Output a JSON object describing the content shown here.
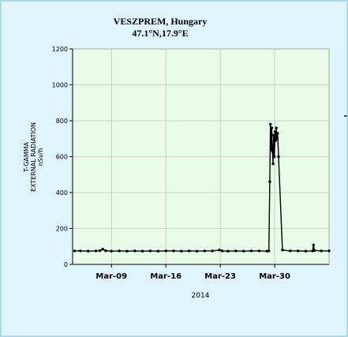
{
  "colors": {
    "panel_background": "#dff5fb",
    "panel_border": "#a6dcec",
    "plot_background": "#e8fbe8",
    "grid": "#c4c4c4",
    "series": "#000000"
  },
  "chart_data": {
    "type": "line",
    "title": "VESZPREM, Hungary",
    "subtitle": "47.1°N,17.9°E",
    "xlabel": "2014",
    "ylabel": "T-GAMMA",
    "ylabel2": "EXTERNAL RADIATION",
    "yunit": "nSv/h",
    "ylim": [
      0,
      1200
    ],
    "y_ticks": [
      "0",
      "200",
      "400",
      "600",
      "800",
      "1000",
      "1200"
    ],
    "xlim": [
      "2014-03-04T00:00",
      "2014-04-06T00:00"
    ],
    "x_ticks": [
      {
        "date": "2014-03-09",
        "label": "Mar-09"
      },
      {
        "date": "2014-03-16",
        "label": "Mar-16"
      },
      {
        "date": "2014-03-23",
        "label": "Mar-23"
      },
      {
        "date": "2014-03-30",
        "label": "Mar-30"
      }
    ],
    "grid": true,
    "legend": "none",
    "series": [
      {
        "points": [
          [
            "2014-03-04T06:00",
            75
          ],
          [
            "2014-03-05T00:00",
            75
          ],
          [
            "2014-03-06T00:00",
            74
          ],
          [
            "2014-03-07T00:00",
            75
          ],
          [
            "2014-03-07T12:00",
            76
          ],
          [
            "2014-03-07T21:00",
            85
          ],
          [
            "2014-03-08T06:00",
            76
          ],
          [
            "2014-03-09T00:00",
            74
          ],
          [
            "2014-03-10T00:00",
            75
          ],
          [
            "2014-03-11T00:00",
            74
          ],
          [
            "2014-03-12T00:00",
            75
          ],
          [
            "2014-03-13T00:00",
            74
          ],
          [
            "2014-03-14T00:00",
            75
          ],
          [
            "2014-03-15T00:00",
            74
          ],
          [
            "2014-03-16T00:00",
            75
          ],
          [
            "2014-03-17T00:00",
            75
          ],
          [
            "2014-03-18T00:00",
            74
          ],
          [
            "2014-03-19T00:00",
            75
          ],
          [
            "2014-03-20T00:00",
            74
          ],
          [
            "2014-03-21T00:00",
            75
          ],
          [
            "2014-03-22T00:00",
            75
          ],
          [
            "2014-03-22T21:00",
            80
          ],
          [
            "2014-03-23T06:00",
            75
          ],
          [
            "2014-03-24T00:00",
            74
          ],
          [
            "2014-03-25T00:00",
            75
          ],
          [
            "2014-03-26T00:00",
            74
          ],
          [
            "2014-03-27T00:00",
            75
          ],
          [
            "2014-03-28T00:00",
            75
          ],
          [
            "2014-03-29T00:00",
            74
          ],
          [
            "2014-03-29T06:00",
            75
          ],
          [
            "2014-03-29T09:00",
            460
          ],
          [
            "2014-03-29T11:00",
            780
          ],
          [
            "2014-03-29T13:00",
            640
          ],
          [
            "2014-03-29T15:00",
            760
          ],
          [
            "2014-03-29T17:00",
            630
          ],
          [
            "2014-03-29T19:00",
            560
          ],
          [
            "2014-03-29T21:00",
            720
          ],
          [
            "2014-03-29T23:00",
            600
          ],
          [
            "2014-03-30T01:00",
            740
          ],
          [
            "2014-03-30T03:00",
            690
          ],
          [
            "2014-03-30T05:00",
            760
          ],
          [
            "2014-03-30T07:00",
            700
          ],
          [
            "2014-03-30T09:00",
            730
          ],
          [
            "2014-03-30T12:00",
            600
          ],
          [
            "2014-03-31T00:00",
            80
          ],
          [
            "2014-04-01T00:00",
            75
          ],
          [
            "2014-04-02T00:00",
            75
          ],
          [
            "2014-04-03T00:00",
            74
          ],
          [
            "2014-04-03T21:00",
            75
          ],
          [
            "2014-04-04T00:00",
            108
          ],
          [
            "2014-04-04T03:00",
            78
          ],
          [
            "2014-04-05T00:00",
            75
          ],
          [
            "2014-04-06T00:00",
            75
          ]
        ]
      }
    ]
  }
}
